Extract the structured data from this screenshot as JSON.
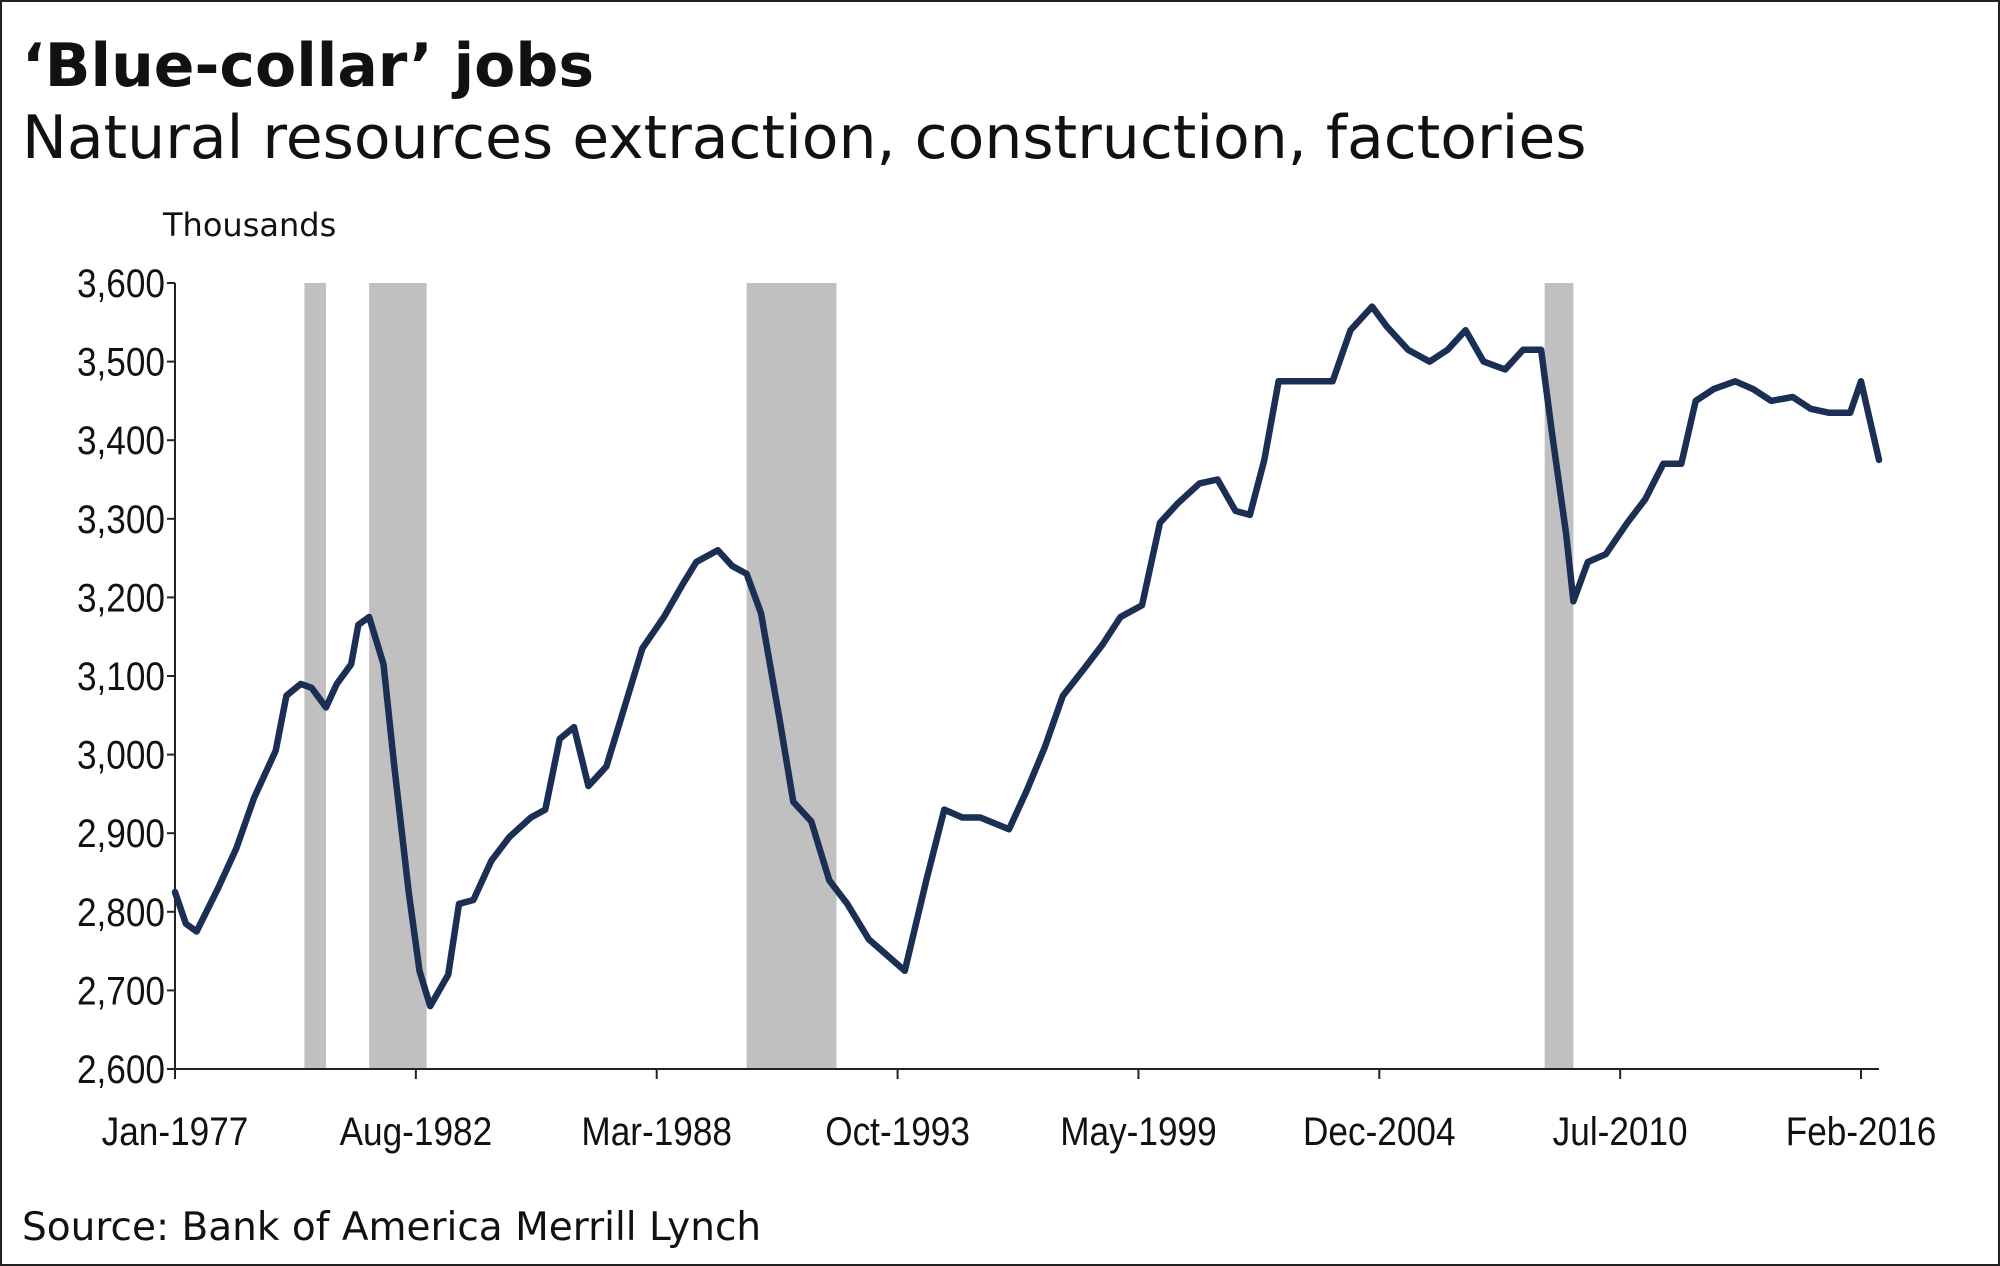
{
  "chart_data": {
    "type": "line",
    "title": "‘Blue-collar’ jobs",
    "subtitle": "Natural resources extraction, construction, factories",
    "y_axis_label": "Thousands",
    "source": "Source: Bank of America Merrill Lynch",
    "color": "#1b2f55",
    "shade_color": "#c0c0c0",
    "shaded_periods": [
      [
        "1980-01",
        "1980-07"
      ],
      [
        "1981-07",
        "1982-11"
      ],
      [
        "1990-04",
        "1992-05"
      ],
      [
        "2008-10",
        "2009-06"
      ]
    ],
    "x": [
      "1977-01",
      "1977-04",
      "1977-07",
      "1978-01",
      "1978-06",
      "1978-11",
      "1979-05",
      "1979-08",
      "1979-12",
      "1980-03",
      "1980-07",
      "1980-10",
      "1981-02",
      "1981-04",
      "1981-07",
      "1981-11",
      "1982-02",
      "1982-06",
      "1982-09",
      "1982-12",
      "1983-05",
      "1983-08",
      "1983-12",
      "1984-05",
      "1984-10",
      "1985-04",
      "1985-08",
      "1985-12",
      "1986-04",
      "1986-08",
      "1987-01",
      "1987-06",
      "1987-11",
      "1988-05",
      "1988-10",
      "1989-02",
      "1989-08",
      "1989-12",
      "1990-04",
      "1990-08",
      "1991-01",
      "1991-05",
      "1991-10",
      "1992-03",
      "1992-08",
      "1993-02",
      "1993-07",
      "1993-12",
      "1994-06",
      "1994-11",
      "1995-04",
      "1995-09",
      "1996-05",
      "1996-10",
      "1997-03",
      "1997-08",
      "1998-02",
      "1998-07",
      "1998-12",
      "1999-06",
      "1999-11",
      "2000-04",
      "2000-10",
      "2001-03",
      "2001-08",
      "2001-12",
      "2002-04",
      "2002-08",
      "2002-12",
      "2003-06",
      "2003-11",
      "2004-04",
      "2004-10",
      "2005-02",
      "2005-08",
      "2006-02",
      "2006-07",
      "2006-12",
      "2007-05",
      "2007-11",
      "2008-04",
      "2008-09",
      "2008-12",
      "2009-04",
      "2009-06",
      "2009-10",
      "2010-03",
      "2010-09",
      "2011-02",
      "2011-07",
      "2011-12",
      "2012-04",
      "2012-09",
      "2013-03",
      "2013-08",
      "2014-01",
      "2014-07",
      "2014-12",
      "2015-05",
      "2015-11",
      "2016-02",
      "2016-07"
    ],
    "values": [
      2825,
      2785,
      2775,
      2830,
      2880,
      2945,
      3005,
      3075,
      3090,
      3085,
      3060,
      3090,
      3115,
      3165,
      3175,
      3115,
      2985,
      2825,
      2725,
      2680,
      2720,
      2810,
      2815,
      2865,
      2895,
      2920,
      2930,
      3020,
      3035,
      2960,
      2985,
      3060,
      3135,
      3175,
      3215,
      3245,
      3260,
      3240,
      3230,
      3180,
      3050,
      2940,
      2915,
      2840,
      2810,
      2765,
      2745,
      2725,
      2840,
      2930,
      2920,
      2920,
      2905,
      2955,
      3010,
      3075,
      3110,
      3140,
      3175,
      3190,
      3295,
      3320,
      3345,
      3350,
      3310,
      3305,
      3375,
      3475,
      3475,
      3475,
      3475,
      3540,
      3570,
      3545,
      3515,
      3500,
      3515,
      3540,
      3500,
      3490,
      3515,
      3515,
      3410,
      3280,
      3195,
      3245,
      3255,
      3295,
      3325,
      3370,
      3370,
      3450,
      3465,
      3475,
      3465,
      3450,
      3455,
      3440,
      3435,
      3435,
      3475,
      3375
    ],
    "xlim": [
      "1977-01",
      "2016-07"
    ],
    "xticks": [
      {
        "value": "1977-01",
        "label": "Jan-1977"
      },
      {
        "value": "1982-08",
        "label": "Aug-1982"
      },
      {
        "value": "1988-03",
        "label": "Mar-1988"
      },
      {
        "value": "1993-10",
        "label": "Oct-1993"
      },
      {
        "value": "1999-05",
        "label": "May-1999"
      },
      {
        "value": "2004-12",
        "label": "Dec-2004"
      },
      {
        "value": "2010-07",
        "label": "Jul-2010"
      },
      {
        "value": "2016-02",
        "label": "Feb-2016"
      }
    ],
    "ylim": [
      2600,
      3600
    ],
    "yticks": [
      {
        "value": 2600,
        "label": "2,600"
      },
      {
        "value": 2700,
        "label": "2,700"
      },
      {
        "value": 2800,
        "label": "2,800"
      },
      {
        "value": 2900,
        "label": "2,900"
      },
      {
        "value": 3000,
        "label": "3,000"
      },
      {
        "value": 3100,
        "label": "3,100"
      },
      {
        "value": 3200,
        "label": "3,200"
      },
      {
        "value": 3300,
        "label": "3,300"
      },
      {
        "value": 3400,
        "label": "3,400"
      },
      {
        "value": 3500,
        "label": "3,500"
      },
      {
        "value": 3600,
        "label": "3,600"
      }
    ],
    "grid": false
  }
}
